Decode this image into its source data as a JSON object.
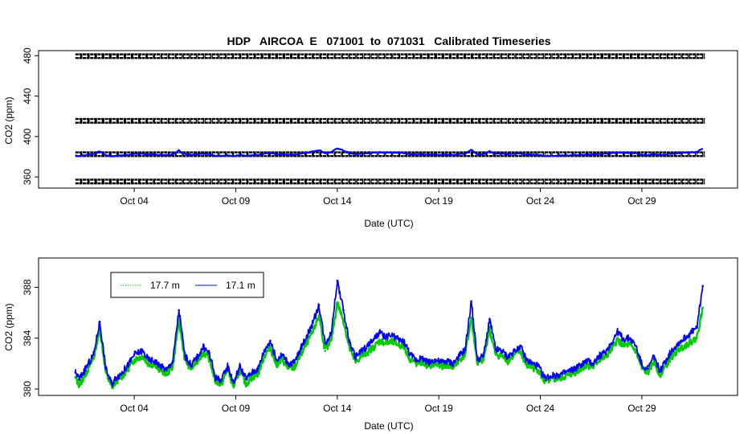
{
  "chart_data": [
    {
      "type": "scatter",
      "title": "HDP   AIRCOA  E   071001  to  071031   Calibrated Timeseries",
      "xlabel": "Date (UTC)",
      "ylabel": "CO2 (ppm)",
      "xlim": [
        0.0,
        33.0
      ],
      "ylim": [
        349.0,
        485.0
      ],
      "x_ticks": [
        {
          "x": 4,
          "label": "Oct 04"
        },
        {
          "x": 9,
          "label": "Oct 09"
        },
        {
          "x": 14,
          "label": "Oct 14"
        },
        {
          "x": 19,
          "label": "Oct 19"
        },
        {
          "x": 24,
          "label": "Oct 24"
        },
        {
          "x": 29,
          "label": "Oct 29"
        }
      ],
      "y_ticks": [
        360,
        400,
        440,
        480
      ],
      "grid": false,
      "reference_gas_levels": [
        355.5,
        382.5,
        415.5,
        479.5
      ],
      "series_colors": [
        "#000000",
        "#0000ff"
      ]
    },
    {
      "type": "scatter",
      "xlabel": "Date (UTC)",
      "ylabel": "CO2 (ppm)",
      "xlim": [
        0.0,
        33.0
      ],
      "ylim": [
        379.5,
        390.3
      ],
      "x_ticks": [
        {
          "x": 4,
          "label": "Oct 04"
        },
        {
          "x": 9,
          "label": "Oct 09"
        },
        {
          "x": 14,
          "label": "Oct 14"
        },
        {
          "x": 19,
          "label": "Oct 19"
        },
        {
          "x": 24,
          "label": "Oct 24"
        },
        {
          "x": 29,
          "label": "Oct 29"
        }
      ],
      "y_ticks": [
        380,
        384,
        388
      ],
      "grid": false,
      "legend_position": "top-left",
      "series": [
        {
          "name": "17.7 m",
          "color": "#00cc00",
          "x": [
            1.1,
            1.3,
            1.6,
            2.0,
            2.3,
            2.6,
            2.9,
            3.1,
            3.4,
            3.7,
            4.0,
            4.4,
            4.7,
            5.0,
            5.3,
            5.6,
            5.9,
            6.2,
            6.5,
            6.8,
            7.1,
            7.4,
            7.7,
            8.0,
            8.3,
            8.6,
            8.9,
            9.2,
            9.5,
            9.8,
            10.1,
            10.4,
            10.7,
            11.0,
            11.3,
            11.6,
            11.9,
            12.2,
            12.5,
            12.8,
            13.1,
            13.4,
            13.7,
            14.0,
            14.3,
            14.6,
            14.9,
            15.2,
            15.5,
            15.8,
            16.1,
            16.4,
            16.7,
            17.0,
            17.3,
            17.6,
            17.9,
            18.2,
            18.5,
            18.8,
            19.1,
            19.4,
            19.7,
            20.0,
            20.3,
            20.6,
            20.9,
            21.2,
            21.5,
            21.8,
            22.1,
            22.4,
            22.7,
            23.0,
            23.3,
            23.6,
            23.9,
            24.2,
            24.5,
            24.8,
            25.1,
            25.4,
            25.7,
            26.0,
            26.3,
            26.6,
            26.9,
            27.2,
            27.5,
            27.8,
            28.1,
            28.4,
            28.7,
            29.0,
            29.3,
            29.6,
            29.9,
            30.2,
            30.5,
            30.8,
            31.1,
            31.4,
            31.7,
            32.0
          ],
          "values": [
            380.9,
            380.3,
            381.2,
            382.4,
            384.8,
            381.3,
            380.1,
            380.6,
            381.0,
            381.6,
            382.3,
            382.6,
            382.0,
            381.9,
            381.5,
            381.2,
            381.8,
            385.4,
            382.3,
            381.6,
            382.2,
            382.9,
            382.4,
            380.6,
            380.4,
            381.5,
            380.2,
            381.5,
            380.4,
            380.9,
            381.2,
            382.6,
            383.3,
            381.9,
            382.3,
            381.6,
            381.7,
            382.7,
            383.6,
            384.5,
            385.8,
            383.0,
            383.8,
            386.8,
            385.4,
            383.2,
            382.1,
            382.6,
            382.9,
            383.3,
            383.8,
            383.6,
            383.7,
            383.5,
            383.3,
            382.3,
            382.0,
            382.1,
            381.8,
            382.0,
            381.8,
            381.9,
            381.7,
            382.3,
            382.7,
            385.6,
            382.0,
            382.3,
            384.7,
            382.7,
            382.6,
            382.2,
            382.7,
            383.0,
            381.9,
            381.7,
            381.5,
            380.6,
            380.7,
            380.8,
            380.9,
            381.1,
            381.3,
            381.6,
            381.9,
            381.7,
            382.3,
            382.5,
            383.1,
            383.9,
            383.4,
            383.5,
            383.0,
            381.6,
            381.3,
            382.2,
            381.1,
            381.9,
            382.6,
            383.1,
            383.4,
            383.7,
            384.0,
            386.4
          ]
        },
        {
          "name": "17.1 m",
          "color": "#0000ff",
          "x": [
            1.1,
            1.3,
            1.6,
            2.0,
            2.3,
            2.6,
            2.9,
            3.1,
            3.4,
            3.7,
            4.0,
            4.4,
            4.7,
            5.0,
            5.3,
            5.6,
            5.9,
            6.2,
            6.5,
            6.8,
            7.1,
            7.4,
            7.7,
            8.0,
            8.3,
            8.6,
            8.9,
            9.2,
            9.5,
            9.8,
            10.1,
            10.4,
            10.7,
            11.0,
            11.3,
            11.6,
            11.9,
            12.2,
            12.5,
            12.8,
            13.1,
            13.4,
            13.7,
            14.0,
            14.3,
            14.6,
            14.9,
            15.2,
            15.5,
            15.8,
            16.1,
            16.4,
            16.7,
            17.0,
            17.3,
            17.6,
            17.9,
            18.2,
            18.5,
            18.8,
            19.1,
            19.4,
            19.7,
            20.0,
            20.3,
            20.6,
            20.9,
            21.2,
            21.5,
            21.8,
            22.1,
            22.4,
            22.7,
            23.0,
            23.3,
            23.6,
            23.9,
            24.2,
            24.5,
            24.8,
            25.1,
            25.4,
            25.7,
            26.0,
            26.3,
            26.6,
            26.9,
            27.2,
            27.5,
            27.8,
            28.1,
            28.4,
            28.7,
            29.0,
            29.3,
            29.6,
            29.9,
            30.2,
            30.5,
            30.8,
            31.1,
            31.4,
            31.7,
            32.0
          ],
          "values": [
            381.3,
            380.8,
            381.6,
            382.7,
            385.3,
            381.6,
            380.4,
            380.9,
            381.3,
            381.9,
            382.7,
            383.0,
            382.3,
            382.2,
            381.8,
            381.5,
            382.2,
            386.2,
            382.6,
            381.9,
            382.5,
            383.3,
            382.8,
            380.9,
            380.7,
            381.8,
            380.5,
            381.8,
            380.8,
            381.3,
            381.6,
            383.0,
            383.8,
            382.3,
            382.7,
            382.0,
            382.1,
            383.2,
            384.2,
            385.2,
            386.6,
            383.6,
            384.4,
            388.5,
            386.2,
            383.7,
            382.5,
            383.0,
            383.4,
            383.9,
            384.4,
            384.1,
            384.2,
            383.9,
            383.7,
            382.7,
            382.3,
            382.4,
            382.1,
            382.3,
            382.1,
            382.2,
            382.0,
            382.6,
            383.1,
            386.9,
            382.3,
            382.6,
            385.5,
            383.1,
            383.0,
            382.5,
            383.0,
            383.4,
            382.3,
            382.0,
            381.8,
            380.9,
            381.0,
            381.1,
            381.2,
            381.4,
            381.6,
            381.9,
            382.2,
            382.0,
            382.6,
            382.9,
            383.6,
            384.5,
            383.9,
            384.0,
            383.4,
            381.9,
            381.6,
            382.6,
            381.4,
            382.3,
            383.1,
            383.6,
            384.0,
            384.4,
            384.8,
            388.1
          ]
        }
      ]
    }
  ]
}
